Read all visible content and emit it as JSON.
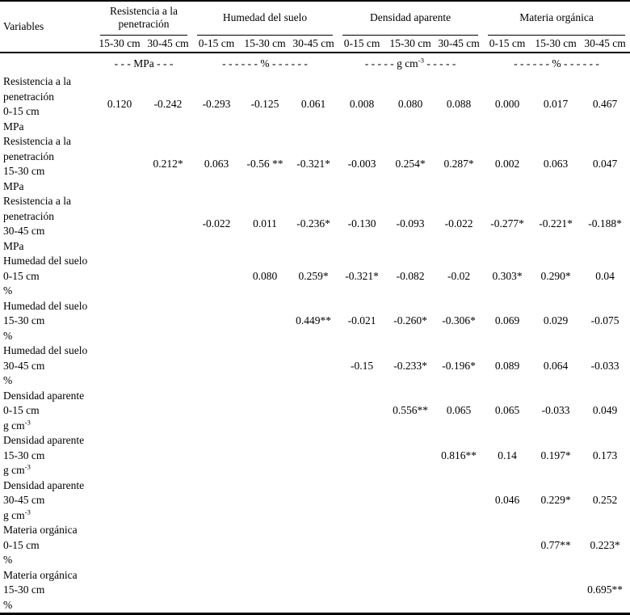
{
  "table": {
    "variables_header": "Variables",
    "num_data_columns": 11,
    "groups": [
      {
        "label": "Resistencia a la penetración",
        "depths": [
          "15-30 cm",
          "30-45 cm"
        ],
        "unit_dash_left": "- - - ",
        "unit_base": "MPa",
        "unit_sup": "",
        "unit_dash_right": " - - -"
      },
      {
        "label": "Humedad del suelo",
        "depths": [
          "0-15 cm",
          "15-30 cm",
          "30-45 cm"
        ],
        "unit_dash_left": "- - - - - - ",
        "unit_base": "%",
        "unit_sup": "",
        "unit_dash_right": " - - - - - -"
      },
      {
        "label": "Densidad aparente",
        "depths": [
          "0-15 cm",
          "15-30 cm",
          "30-45 cm"
        ],
        "unit_dash_left": "- - - - - ",
        "unit_base": "g cm",
        "unit_sup": "-3",
        "unit_dash_right": " - - - - -"
      },
      {
        "label": "Materia orgánica",
        "depths": [
          "0-15 cm",
          "15-30 cm",
          "30-45 cm"
        ],
        "unit_dash_left": "- - - - - - ",
        "unit_base": "%",
        "unit_sup": "",
        "unit_dash_right": " - - - - - -"
      }
    ],
    "rows": [
      {
        "label_lines": [
          "Resistencia a la",
          "penetración",
          "0-15 cm"
        ],
        "unit_base": "MPa",
        "unit_sup": "",
        "values": [
          "0.120",
          "-0.242",
          "-0.293",
          "-0.125",
          "0.061",
          "0.008",
          "0.080",
          "0.088",
          "0.000",
          "0.017",
          "0.467"
        ]
      },
      {
        "label_lines": [
          "Resistencia a la",
          "penetración",
          "15-30 cm"
        ],
        "unit_base": "MPa",
        "unit_sup": "",
        "values": [
          "0.212*",
          "0.063",
          "-0.56 **",
          "-0.321*",
          "-0.003",
          "0.254*",
          "0.287*",
          "0.002",
          "0.063",
          "0.047"
        ]
      },
      {
        "label_lines": [
          "Resistencia a la",
          "penetración",
          "30-45 cm"
        ],
        "unit_base": "MPa",
        "unit_sup": "",
        "values": [
          "-0.022",
          "0.011",
          "-0.236*",
          "-0.130",
          "-0.093",
          "-0.022",
          "-0.277*",
          "-0.221*",
          "-0.188*"
        ]
      },
      {
        "label_lines": [
          "Humedad del suelo",
          "0-15 cm"
        ],
        "unit_base": "%",
        "unit_sup": "",
        "values": [
          "0.080",
          "0.259*",
          "-0.321*",
          "-0.082",
          "-0.02",
          "0.303*",
          "0.290*",
          "0.04"
        ]
      },
      {
        "label_lines": [
          "Humedad del suelo",
          "15-30 cm"
        ],
        "unit_base": "%",
        "unit_sup": "",
        "values": [
          "0.449**",
          "-0.021",
          "-0.260*",
          "-0.306*",
          "0.069",
          "0.029",
          "-0.075"
        ]
      },
      {
        "label_lines": [
          "Humedad del suelo",
          "30-45 cm"
        ],
        "unit_base": "%",
        "unit_sup": "",
        "values": [
          "-0.15",
          "-0.233*",
          "-0.196*",
          "0.089",
          "0.064",
          "-0.033"
        ]
      },
      {
        "label_lines": [
          "Densidad aparente",
          "0-15 cm"
        ],
        "unit_base": "g cm",
        "unit_sup": "-3",
        "values": [
          "0.556**",
          "0.065",
          "0.065",
          "-0.033",
          "0.049"
        ]
      },
      {
        "label_lines": [
          "Densidad aparente",
          "15-30 cm"
        ],
        "unit_base": "g cm",
        "unit_sup": "-3",
        "values": [
          "0.816**",
          "0.14",
          "0.197*",
          "0.173"
        ]
      },
      {
        "label_lines": [
          "Densidad aparente",
          "30-45 cm"
        ],
        "unit_base": "g cm",
        "unit_sup": "-3",
        "values": [
          "0.046",
          "0.229*",
          "0.252"
        ]
      },
      {
        "label_lines": [
          "Materia orgánica",
          "0-15 cm"
        ],
        "unit_base": "%",
        "unit_sup": "",
        "values": [
          "0.77**",
          "0.223*"
        ]
      },
      {
        "label_lines": [
          "Materia orgánica",
          "15-30 cm"
        ],
        "unit_base": "%",
        "unit_sup": "",
        "values": [
          "0.695**"
        ]
      }
    ]
  }
}
